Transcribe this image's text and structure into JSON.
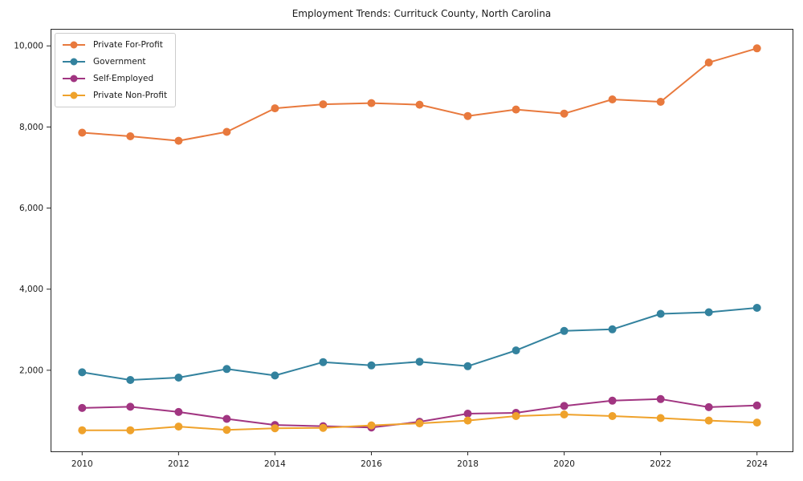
{
  "chart_data": {
    "type": "line",
    "title": "Employment Trends: Currituck County, North Carolina",
    "x": [
      2010,
      2011,
      2012,
      2013,
      2014,
      2015,
      2016,
      2017,
      2018,
      2019,
      2020,
      2021,
      2022,
      2023,
      2024
    ],
    "series": [
      {
        "name": "Private For-Profit",
        "color": "#e8793d",
        "values": [
          7860,
          7770,
          7660,
          7880,
          8460,
          8560,
          8590,
          8550,
          8270,
          8430,
          8330,
          8680,
          8620,
          9590,
          9940
        ]
      },
      {
        "name": "Government",
        "color": "#33829e",
        "values": [
          1950,
          1760,
          1820,
          2030,
          1870,
          2200,
          2120,
          2210,
          2100,
          2490,
          2970,
          3010,
          3390,
          3430,
          3540
        ]
      },
      {
        "name": "Self-Employed",
        "color": "#a13581",
        "values": [
          1070,
          1100,
          970,
          800,
          650,
          620,
          590,
          730,
          930,
          950,
          1120,
          1250,
          1290,
          1090,
          1130
        ]
      },
      {
        "name": "Private Non-Profit",
        "color": "#efa22b",
        "values": [
          520,
          520,
          610,
          530,
          570,
          580,
          640,
          690,
          760,
          870,
          910,
          870,
          820,
          760,
          710
        ]
      }
    ],
    "xticks": {
      "values": [
        2010,
        2012,
        2014,
        2016,
        2018,
        2020,
        2022,
        2024
      ],
      "labels": [
        "2010",
        "2012",
        "2014",
        "2016",
        "2018",
        "2020",
        "2022",
        "2024"
      ]
    },
    "yticks": {
      "values": [
        2000,
        4000,
        6000,
        8000,
        10000
      ],
      "labels": [
        "2,000",
        "4,000",
        "6,000",
        "8,000",
        "10,000"
      ]
    },
    "ylim": [
      0,
      10420
    ],
    "xlabel": "",
    "ylabel": "",
    "grid": false,
    "legend_position": "upper left",
    "axis_color": "#262626"
  }
}
